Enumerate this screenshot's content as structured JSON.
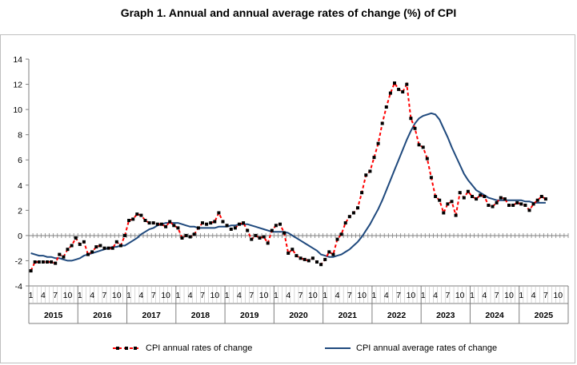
{
  "chart_data": {
    "type": "line",
    "title": "Graph 1. Annual and annual average rates of change (%) of CPI",
    "ylim": [
      -4,
      14
    ],
    "yticks": [
      -4,
      -2,
      0,
      2,
      4,
      6,
      8,
      10,
      12,
      14
    ],
    "x_start": "2015-01",
    "month_tick_labels": [
      "1",
      "4",
      "7",
      "10"
    ],
    "year_labels": [
      "2015",
      "2016",
      "2017",
      "2018",
      "2019",
      "2020",
      "2021",
      "2022",
      "2023",
      "2024",
      "2025"
    ],
    "grid": false,
    "legend_position": "bottom",
    "series": [
      {
        "name": "CPI annual rates of change",
        "color": "#ff0000",
        "style": "dashed-markers",
        "values": [
          -2.8,
          -2.1,
          -2.1,
          -2.1,
          -2.1,
          -2.1,
          -2.2,
          -1.5,
          -1.7,
          -1.1,
          -0.8,
          -0.2,
          -0.7,
          -0.5,
          -1.5,
          -1.3,
          -0.9,
          -0.8,
          -1.0,
          -1.0,
          -1.0,
          -0.5,
          -0.8,
          0.0,
          1.2,
          1.3,
          1.7,
          1.6,
          1.2,
          1.0,
          1.0,
          0.9,
          0.9,
          0.7,
          1.1,
          0.8,
          0.6,
          -0.2,
          0.0,
          -0.1,
          0.1,
          0.6,
          1.0,
          0.9,
          1.0,
          1.1,
          1.8,
          1.1,
          0.8,
          0.5,
          0.6,
          0.9,
          1.0,
          0.4,
          -0.3,
          0.0,
          -0.2,
          -0.1,
          -0.6,
          0.4,
          0.8,
          0.9,
          0.2,
          -1.4,
          -1.1,
          -1.6,
          -1.8,
          -1.9,
          -2.0,
          -1.8,
          -2.1,
          -2.3,
          -1.9,
          -1.3,
          -1.5,
          -0.3,
          0.1,
          1.0,
          1.5,
          1.8,
          2.2,
          3.4,
          4.8,
          5.1,
          6.2,
          7.3,
          8.9,
          10.2,
          11.3,
          12.1,
          11.6,
          11.4,
          12.0,
          9.3,
          8.5,
          7.2,
          7.0,
          6.1,
          4.6,
          3.1,
          2.8,
          1.8,
          2.5,
          2.7,
          1.6,
          3.4,
          3.0,
          3.5,
          3.1,
          2.9,
          3.2,
          3.1,
          2.4,
          2.3,
          2.6,
          3.0,
          2.9,
          2.4,
          2.4,
          2.6,
          2.5,
          2.4,
          2.0,
          2.5,
          2.8,
          3.1,
          2.9
        ]
      },
      {
        "name": "CPI annual average rates of change",
        "color": "#1f497d",
        "style": "solid",
        "values": [
          -1.4,
          -1.5,
          -1.6,
          -1.6,
          -1.7,
          -1.7,
          -1.8,
          -1.8,
          -1.9,
          -2.0,
          -2.0,
          -1.9,
          -1.8,
          -1.6,
          -1.5,
          -1.4,
          -1.3,
          -1.2,
          -1.1,
          -1.0,
          -0.9,
          -0.9,
          -0.8,
          -0.8,
          -0.6,
          -0.4,
          -0.2,
          0.1,
          0.3,
          0.5,
          0.6,
          0.8,
          0.9,
          1.0,
          1.0,
          1.0,
          1.0,
          0.9,
          0.8,
          0.7,
          0.7,
          0.6,
          0.6,
          0.6,
          0.6,
          0.6,
          0.7,
          0.7,
          0.7,
          0.8,
          0.8,
          0.9,
          0.9,
          0.9,
          0.8,
          0.7,
          0.6,
          0.5,
          0.4,
          0.3,
          0.3,
          0.3,
          0.3,
          0.2,
          0.0,
          -0.2,
          -0.4,
          -0.6,
          -0.8,
          -1.0,
          -1.2,
          -1.5,
          -1.6,
          -1.7,
          -1.7,
          -1.6,
          -1.5,
          -1.3,
          -1.1,
          -0.8,
          -0.5,
          -0.1,
          0.4,
          0.9,
          1.5,
          2.1,
          2.8,
          3.6,
          4.4,
          5.2,
          6.0,
          6.8,
          7.6,
          8.3,
          8.9,
          9.3,
          9.5,
          9.6,
          9.7,
          9.6,
          9.2,
          8.5,
          7.8,
          7.0,
          6.3,
          5.6,
          4.9,
          4.4,
          4.0,
          3.6,
          3.4,
          3.2,
          3.0,
          2.9,
          2.8,
          2.8,
          2.8,
          2.8,
          2.8,
          2.8,
          2.8,
          2.7,
          2.7,
          2.6,
          2.6,
          2.6,
          2.6
        ]
      }
    ]
  }
}
